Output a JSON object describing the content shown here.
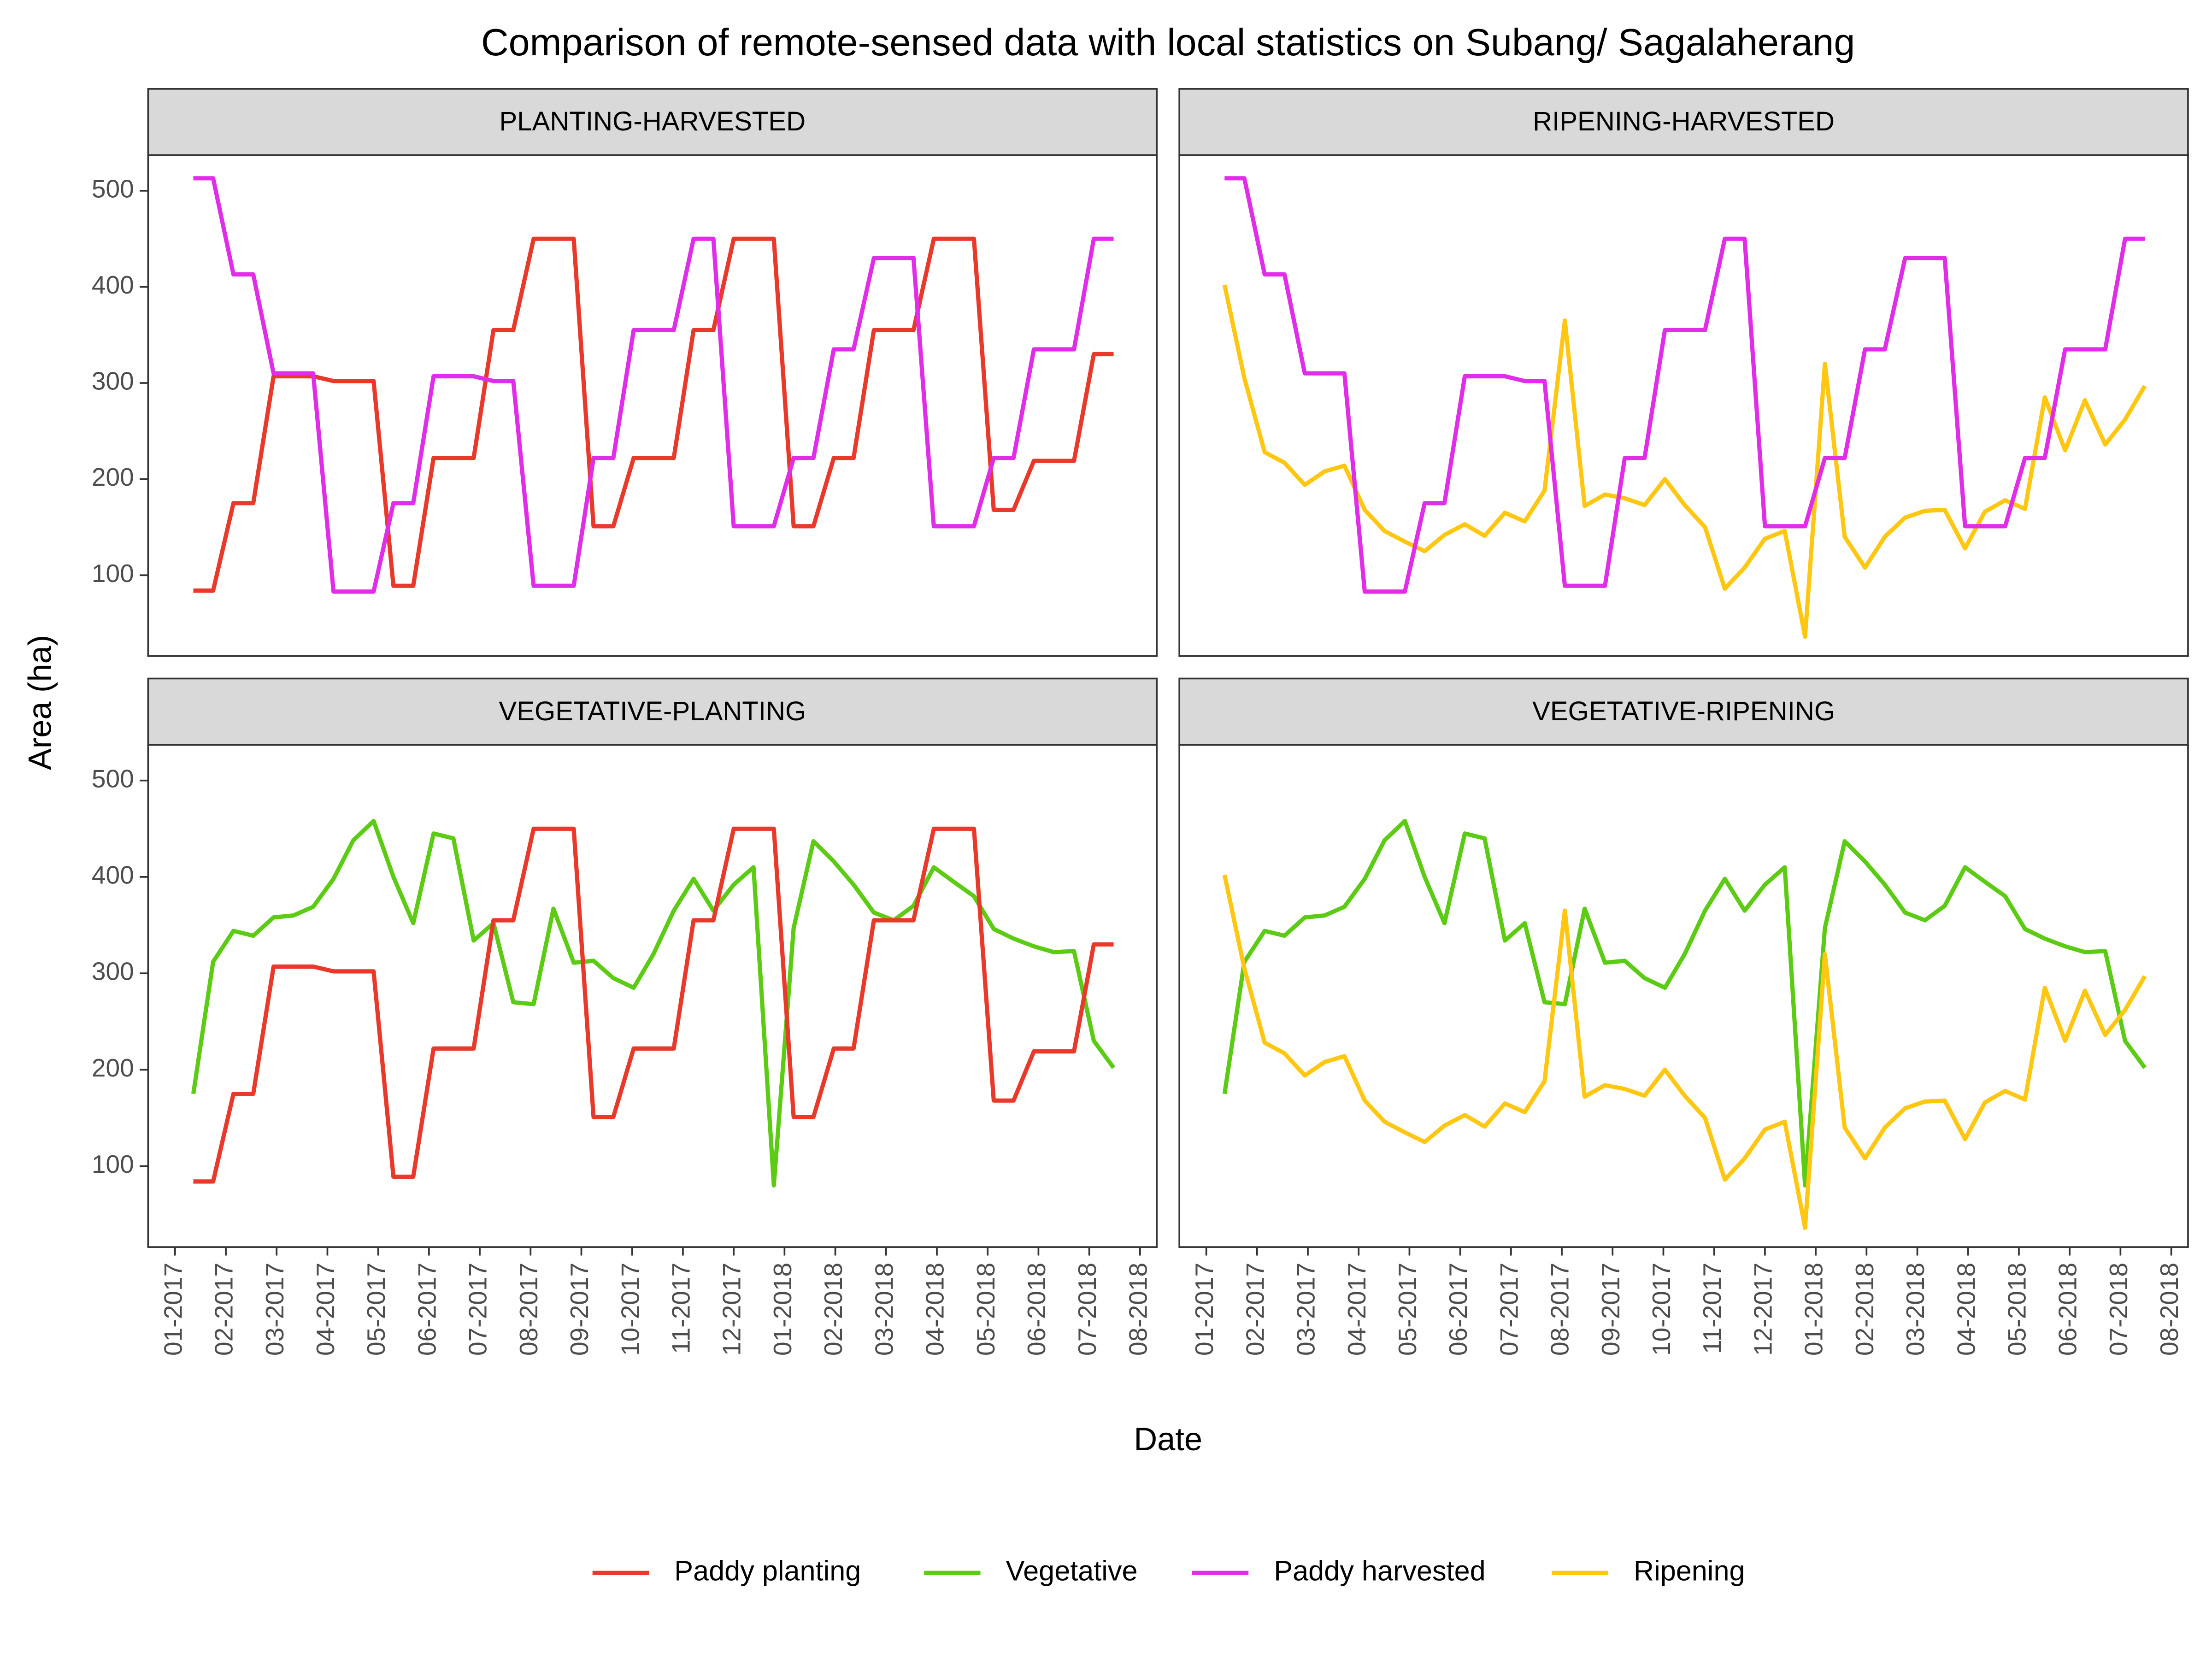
{
  "chart_data": {
    "type": "line",
    "title": "Comparison of remote-sensed data with local statistics on Subang/ Sagalaherang",
    "x_label": "Date",
    "y_label": "Area (ha)",
    "x": [
      0.36,
      0.75,
      1.15,
      1.54,
      1.94,
      2.33,
      2.72,
      3.12,
      3.51,
      3.91,
      4.3,
      4.69,
      5.09,
      5.48,
      5.88,
      6.27,
      6.66,
      7.06,
      7.45,
      7.85,
      8.24,
      8.63,
      9.03,
      9.42,
      9.82,
      10.21,
      10.6,
      11.0,
      11.39,
      11.79,
      12.18,
      12.57,
      12.97,
      13.36,
      13.76,
      14.15,
      14.54,
      14.94,
      15.33,
      15.73,
      16.12,
      16.51,
      16.91,
      17.3,
      17.7,
      18.09,
      18.48
    ],
    "xlim": [
      -0.53,
      19.33
    ],
    "xticks": [
      {
        "value": 0,
        "label": "01-2017"
      },
      {
        "value": 1,
        "label": "02-2017"
      },
      {
        "value": 2,
        "label": "03-2017"
      },
      {
        "value": 3,
        "label": "04-2017"
      },
      {
        "value": 4,
        "label": "05-2017"
      },
      {
        "value": 5,
        "label": "06-2017"
      },
      {
        "value": 6,
        "label": "07-2017"
      },
      {
        "value": 7,
        "label": "08-2017"
      },
      {
        "value": 8,
        "label": "09-2017"
      },
      {
        "value": 9,
        "label": "10-2017"
      },
      {
        "value": 10,
        "label": "11-2017"
      },
      {
        "value": 11,
        "label": "12-2017"
      },
      {
        "value": 12,
        "label": "01-2018"
      },
      {
        "value": 13,
        "label": "02-2018"
      },
      {
        "value": 14,
        "label": "03-2018"
      },
      {
        "value": 15,
        "label": "04-2018"
      },
      {
        "value": 16,
        "label": "05-2018"
      },
      {
        "value": 17,
        "label": "06-2018"
      },
      {
        "value": 18,
        "label": "07-2018"
      },
      {
        "value": 19,
        "label": "08-2018"
      }
    ],
    "ylim": [
      16,
      537
    ],
    "yticks": [
      100,
      200,
      300,
      400,
      500
    ],
    "grid": false,
    "legend": "bottom",
    "series": [
      {
        "name": "Paddy planting",
        "color": "#e8392a",
        "values": [
          84,
          84,
          175,
          175,
          307,
          307,
          307,
          302,
          302,
          302,
          89,
          89,
          222,
          222,
          222,
          355,
          355,
          450,
          450,
          450,
          151,
          151,
          222,
          222,
          222,
          355,
          355,
          450,
          450,
          450,
          151,
          151,
          222,
          222,
          355,
          355,
          355,
          450,
          450,
          450,
          168,
          168,
          219,
          219,
          219,
          330,
          330
        ]
      },
      {
        "name": "Vegetative",
        "color": "#5ccb13",
        "values": [
          175,
          312,
          344,
          339,
          358,
          360,
          369,
          398,
          438,
          458,
          400,
          352,
          445,
          440,
          334,
          352,
          270,
          268,
          367,
          311,
          313,
          295,
          285,
          320,
          365,
          398,
          365,
          392,
          410,
          80,
          347,
          437,
          416,
          392,
          363,
          355,
          370,
          410,
          395,
          380,
          346,
          336,
          328,
          322,
          323,
          230,
          202
        ]
      },
      {
        "name": "Paddy harvested",
        "color": "#e02ee8",
        "values": [
          513,
          513,
          413,
          413,
          310,
          310,
          310,
          83,
          83,
          83,
          175,
          175,
          307,
          307,
          307,
          302,
          302,
          89,
          89,
          89,
          222,
          222,
          355,
          355,
          355,
          450,
          450,
          151,
          151,
          151,
          222,
          222,
          335,
          335,
          430,
          430,
          430,
          151,
          151,
          151,
          222,
          222,
          335,
          335,
          335,
          450,
          450
        ]
      },
      {
        "name": "Ripening",
        "color": "#ffc711",
        "values": [
          402,
          305,
          228,
          217,
          194,
          208,
          214,
          168,
          146,
          135,
          125,
          142,
          153,
          141,
          165,
          156,
          188,
          365,
          172,
          184,
          180,
          173,
          200,
          173,
          150,
          86,
          108,
          138,
          146,
          36,
          320,
          140,
          108,
          140,
          160,
          167,
          168,
          128,
          166,
          178,
          169,
          285,
          230,
          282,
          236,
          262,
          297
        ]
      }
    ],
    "panels": [
      {
        "title": "PLANTING-HARVESTED",
        "series": [
          "Paddy planting",
          "Paddy harvested"
        ]
      },
      {
        "title": "RIPENING-HARVESTED",
        "series": [
          "Ripening",
          "Paddy harvested"
        ]
      },
      {
        "title": "VEGETATIVE-PLANTING",
        "series": [
          "Vegetative",
          "Paddy planting"
        ]
      },
      {
        "title": "VEGETATIVE-RIPENING",
        "series": [
          "Vegetative",
          "Ripening"
        ]
      }
    ]
  }
}
